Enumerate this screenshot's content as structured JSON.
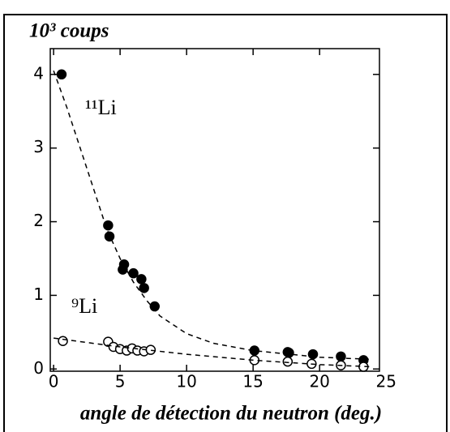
{
  "chart_data": {
    "type": "scatter",
    "ylabel": "10³ coups",
    "xlabel": "angle de détection du neutron (deg.)",
    "xlim": [
      -0.25,
      24.5
    ],
    "ylim": [
      -0.03,
      4.35
    ],
    "xticks": [
      0,
      5,
      10,
      15,
      20,
      25
    ],
    "yticks": [
      0,
      1,
      2,
      3,
      4
    ],
    "series": [
      {
        "name": "¹¹Li",
        "color": "#000000",
        "marker": "filled",
        "x": [
          0.6,
          4.1,
          4.2,
          5.2,
          5.3,
          6.0,
          6.6,
          6.8,
          7.6,
          15.1,
          17.6,
          17.7,
          19.5,
          21.6,
          23.3
        ],
        "values": [
          4.0,
          1.95,
          1.8,
          1.35,
          1.42,
          1.3,
          1.22,
          1.1,
          0.85,
          0.25,
          0.23,
          0.22,
          0.2,
          0.17,
          0.12
        ]
      },
      {
        "name": "⁹Li",
        "color": "#000000",
        "marker": "open",
        "x": [
          0.7,
          4.1,
          4.5,
          5.0,
          5.5,
          5.9,
          6.3,
          6.8,
          7.3,
          15.1,
          17.6,
          19.4,
          21.6,
          23.3
        ],
        "values": [
          0.38,
          0.37,
          0.3,
          0.27,
          0.25,
          0.28,
          0.25,
          0.24,
          0.26,
          0.12,
          0.1,
          0.07,
          0.05,
          0.03
        ]
      },
      {
        "color": "#000000",
        "marker": "dashed",
        "x": [
          0,
          1,
          2,
          3,
          4,
          5,
          6,
          7,
          8,
          10,
          12,
          15,
          20,
          24
        ],
        "values": [
          4.05,
          3.55,
          3.0,
          2.45,
          1.9,
          1.5,
          1.18,
          0.93,
          0.72,
          0.48,
          0.35,
          0.25,
          0.16,
          0.13
        ]
      },
      {
        "color": "#000000",
        "marker": "dashed",
        "x": [
          0,
          5,
          10,
          15,
          20,
          24
        ],
        "values": [
          0.42,
          0.3,
          0.2,
          0.12,
          0.06,
          0.03
        ]
      }
    ]
  }
}
